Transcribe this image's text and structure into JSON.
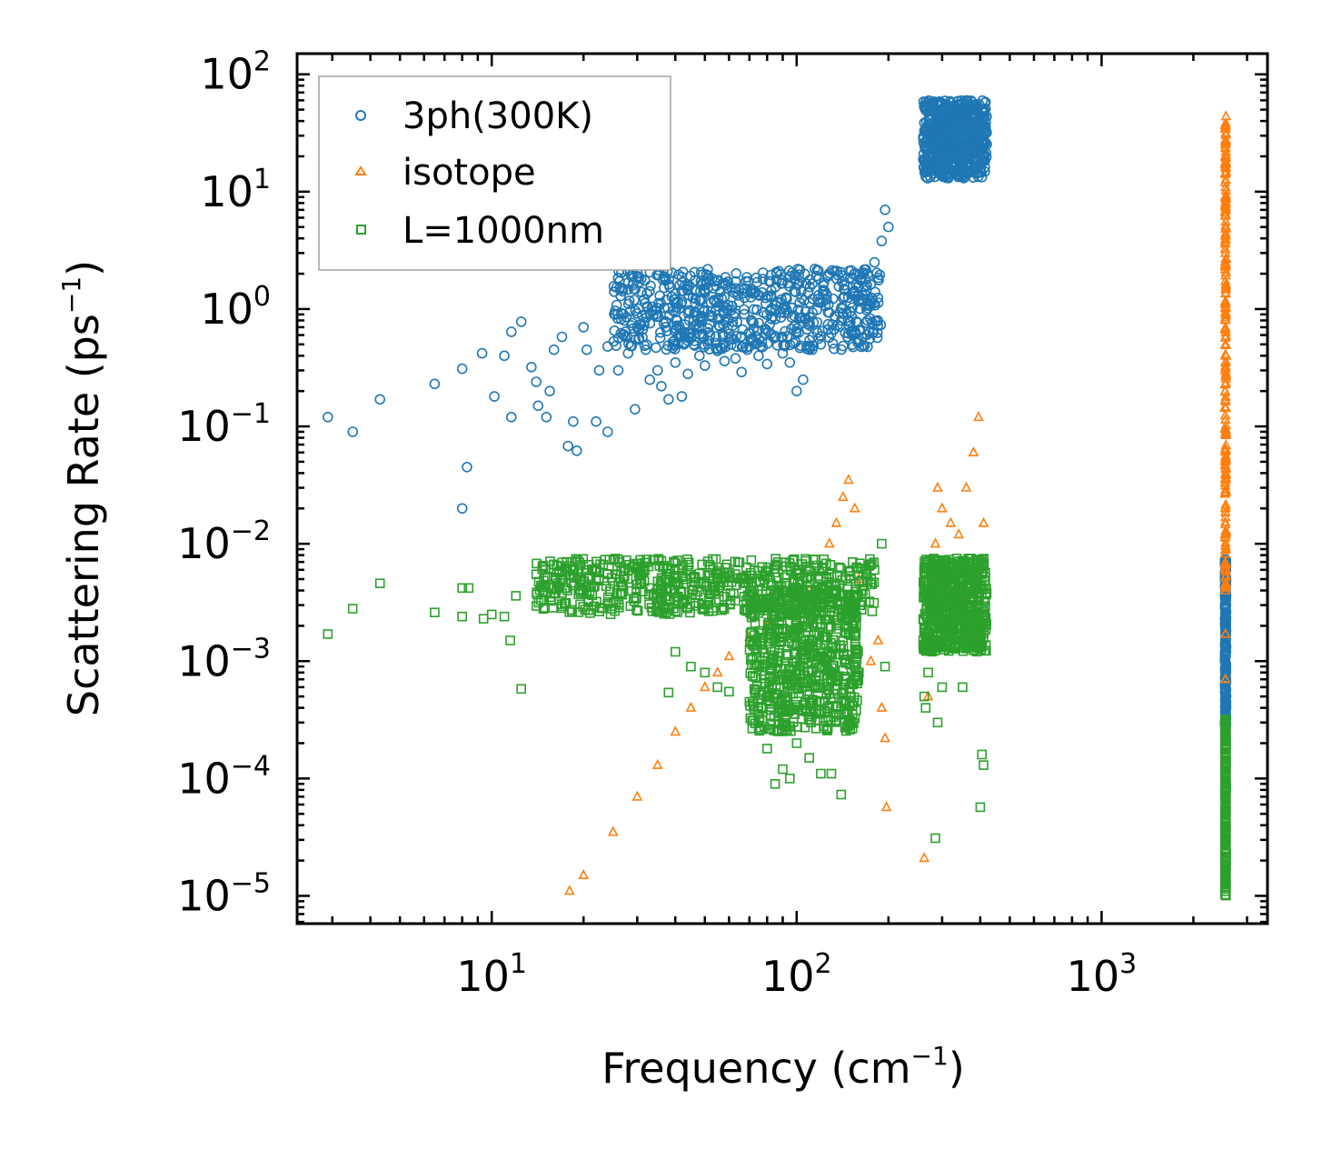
{
  "chart_data": {
    "type": "scatter",
    "title": "",
    "xlabel": "Frequency (cm",
    "xlabel_sup": "−1",
    "xlabel_end": ")",
    "ylabel": "Scattering Rate (ps",
    "ylabel_sup": "−1",
    "ylabel_end": ")",
    "xscale": "log",
    "yscale": "log",
    "xlim": [
      2.3,
      3500
    ],
    "ylim": [
      5.8e-06,
      150
    ],
    "legend_position": "top-left",
    "x_ticks": [
      {
        "value": 10,
        "base": "10",
        "exp": "1"
      },
      {
        "value": 100,
        "base": "10",
        "exp": "2"
      },
      {
        "value": 1000,
        "base": "10",
        "exp": "3"
      }
    ],
    "y_ticks": [
      {
        "value": 1e-05,
        "base": "10",
        "exp": "−5"
      },
      {
        "value": 0.0001,
        "base": "10",
        "exp": "−4"
      },
      {
        "value": 0.001,
        "base": "10",
        "exp": "−3"
      },
      {
        "value": 0.01,
        "base": "10",
        "exp": "−2"
      },
      {
        "value": 0.1,
        "base": "10",
        "exp": "−1"
      },
      {
        "value": 1,
        "base": "10",
        "exp": "0"
      },
      {
        "value": 10,
        "base": "10",
        "exp": "1"
      },
      {
        "value": 100,
        "base": "10",
        "exp": "2"
      }
    ],
    "series": [
      {
        "name": "3ph(300K)",
        "marker": "circle",
        "color": "#1f77b4",
        "points": [
          [
            2.9,
            0.12
          ],
          [
            3.5,
            0.09
          ],
          [
            4.3,
            0.17
          ],
          [
            6.5,
            0.23
          ],
          [
            8.0,
            0.31
          ],
          [
            8.3,
            0.045
          ],
          [
            8.0,
            0.02
          ],
          [
            9.3,
            0.42
          ],
          [
            10.2,
            0.18
          ],
          [
            11.0,
            0.4
          ],
          [
            11.6,
            0.12
          ],
          [
            11.6,
            0.64
          ],
          [
            12.5,
            0.78
          ],
          [
            13.5,
            0.32
          ],
          [
            14.0,
            0.24
          ],
          [
            14.2,
            0.15
          ],
          [
            15.1,
            0.12
          ],
          [
            15.5,
            0.2
          ],
          [
            16.0,
            0.45
          ],
          [
            17.0,
            0.58
          ],
          [
            17.8,
            0.068
          ],
          [
            18.5,
            0.11
          ],
          [
            19.0,
            0.062
          ],
          [
            20.0,
            0.7
          ],
          [
            20.5,
            0.45
          ],
          [
            22.0,
            0.11
          ],
          [
            22.5,
            0.3
          ],
          [
            24.0,
            0.09
          ],
          [
            24.0,
            0.48
          ],
          [
            26.0,
            0.3
          ],
          [
            27.0,
            0.6
          ],
          [
            28.0,
            0.42
          ],
          [
            29.5,
            0.14
          ],
          [
            30.0,
            0.7
          ],
          [
            32.0,
            0.45
          ],
          [
            33.0,
            0.25
          ],
          [
            35.0,
            0.3
          ],
          [
            36.0,
            0.22
          ],
          [
            38.0,
            0.17
          ],
          [
            40.0,
            0.35
          ],
          [
            42.0,
            0.18
          ],
          [
            44.0,
            0.28
          ],
          [
            46.0,
            0.5
          ],
          [
            48.0,
            0.4
          ],
          [
            50.0,
            0.33
          ],
          [
            52.0,
            0.6
          ],
          [
            55.0,
            0.44
          ],
          [
            58.0,
            0.36
          ],
          [
            60.0,
            0.55
          ],
          [
            63.0,
            0.38
          ],
          [
            66.0,
            0.29
          ],
          [
            70.0,
            0.48
          ],
          [
            75.0,
            0.4
          ],
          [
            80.0,
            0.34
          ],
          [
            85.0,
            0.58
          ],
          [
            90.0,
            0.42
          ],
          [
            95.0,
            0.35
          ],
          [
            100.0,
            0.2
          ],
          [
            105.0,
            0.25
          ],
          [
            110.0,
            0.45
          ],
          [
            120.0,
            0.5
          ],
          [
            130.0,
            0.62
          ],
          [
            140.0,
            0.8
          ],
          [
            150.0,
            0.95
          ],
          [
            160.0,
            1.2
          ],
          [
            170.0,
            1.6
          ],
          [
            180.0,
            2.5
          ],
          [
            190.0,
            3.8
          ],
          [
            195.0,
            7.0
          ],
          [
            200.0,
            5.0
          ]
        ],
        "bands": [
          {
            "x0": 25,
            "x1": 190,
            "y_low": 0.45,
            "y_high": 2.2
          },
          {
            "x0": 260,
            "x1": 420,
            "y_low": 13,
            "y_high": 60
          },
          {
            "x0": 2540,
            "x1": 2560,
            "y_low": 0.00028,
            "y_high": 0.0075
          }
        ]
      },
      {
        "name": "isotope",
        "marker": "triangle",
        "color": "#ff7f0e",
        "points": [
          [
            18,
            1.1e-05
          ],
          [
            20,
            1.5e-05
          ],
          [
            25,
            3.5e-05
          ],
          [
            30,
            7e-05
          ],
          [
            35,
            0.00013
          ],
          [
            40,
            0.00025
          ],
          [
            45,
            0.0004
          ],
          [
            50,
            0.0006
          ],
          [
            55,
            0.0008
          ],
          [
            60,
            0.0011
          ],
          [
            70,
            0.0016
          ],
          [
            80,
            0.002
          ],
          [
            95,
            0.0025
          ],
          [
            110,
            0.004
          ],
          [
            120,
            0.006
          ],
          [
            128,
            0.01
          ],
          [
            135,
            0.015
          ],
          [
            142,
            0.025
          ],
          [
            148,
            0.035
          ],
          [
            155,
            0.02
          ],
          [
            160,
            0.005
          ],
          [
            175,
            0.001
          ],
          [
            185,
            0.0015
          ],
          [
            190,
            0.0004
          ],
          [
            195,
            0.00022
          ],
          [
            197,
            5.7e-05
          ],
          [
            262,
            2.1e-05
          ],
          [
            270,
            0.0005
          ],
          [
            275,
            0.006
          ],
          [
            285,
            0.01
          ],
          [
            290,
            0.03
          ],
          [
            300,
            0.02
          ],
          [
            320,
            0.015
          ],
          [
            340,
            0.012
          ],
          [
            360,
            0.03
          ],
          [
            380,
            0.06
          ],
          [
            395,
            0.12
          ],
          [
            410,
            0.015
          ],
          [
            2550,
            0.0007
          ],
          [
            2550,
            0.0017
          ],
          [
            2550,
            0.004
          ],
          [
            2550,
            0.04
          ]
        ],
        "bands": [
          {
            "x0": 2540,
            "x1": 2560,
            "y_low": 0.004,
            "y_high": 45
          }
        ]
      },
      {
        "name": "L=1000nm",
        "marker": "square",
        "color": "#2ca02c",
        "points": [
          [
            2.9,
            0.0017
          ],
          [
            3.5,
            0.0028
          ],
          [
            4.3,
            0.0046
          ],
          [
            6.5,
            0.0026
          ],
          [
            8.0,
            0.0024
          ],
          [
            8.0,
            0.0042
          ],
          [
            8.4,
            0.0042
          ],
          [
            9.4,
            0.0023
          ],
          [
            10.0,
            0.0025
          ],
          [
            11.0,
            0.0024
          ],
          [
            11.5,
            0.0015
          ],
          [
            12.0,
            0.0036
          ],
          [
            12.5,
            0.00058
          ],
          [
            14.0,
            0.0055
          ],
          [
            15.0,
            0.006
          ],
          [
            16.0,
            0.0042
          ],
          [
            17.0,
            0.0038
          ],
          [
            18.0,
            0.0055
          ],
          [
            20.0,
            0.0048
          ],
          [
            22.0,
            0.0062
          ],
          [
            24.0,
            0.0055
          ],
          [
            27.0,
            0.005
          ],
          [
            30.0,
            0.0045
          ],
          [
            33.0,
            0.0042
          ],
          [
            36.0,
            0.0038
          ],
          [
            38.0,
            0.00054
          ],
          [
            40.0,
            0.0012
          ],
          [
            45.0,
            0.0009
          ],
          [
            50.0,
            0.0008
          ],
          [
            55.0,
            0.0006
          ],
          [
            60.0,
            0.00055
          ],
          [
            70.0,
            0.00045
          ],
          [
            80.0,
            0.00018
          ],
          [
            85.0,
            9e-05
          ],
          [
            90.0,
            0.00012
          ],
          [
            95.0,
            0.0001
          ],
          [
            100.0,
            0.0002
          ],
          [
            110.0,
            0.00015
          ],
          [
            120.0,
            0.00011
          ],
          [
            130.0,
            0.00011
          ],
          [
            140.0,
            7.3e-05
          ],
          [
            150.0,
            0.0005
          ],
          [
            160.0,
            0.0008
          ],
          [
            180.0,
            0.006
          ],
          [
            190.0,
            0.01
          ],
          [
            195.0,
            0.0009
          ],
          [
            262,
            0.0005
          ],
          [
            265,
            0.0004
          ],
          [
            270,
            0.0008
          ],
          [
            285,
            3.1e-05
          ],
          [
            290,
            0.0003
          ],
          [
            300,
            0.0006
          ],
          [
            350,
            0.0006
          ],
          [
            400,
            5.7e-05
          ],
          [
            405,
            0.00016
          ],
          [
            410,
            0.00013
          ]
        ],
        "bands": [
          {
            "x0": 14,
            "x1": 180,
            "y_low": 0.0025,
            "y_high": 0.0075
          },
          {
            "x0": 70,
            "x1": 160,
            "y_low": 0.00025,
            "y_high": 0.004
          },
          {
            "x0": 260,
            "x1": 420,
            "y_low": 0.0012,
            "y_high": 0.0075
          },
          {
            "x0": 2540,
            "x1": 2560,
            "y_low": 1e-05,
            "y_high": 0.00032
          }
        ]
      }
    ]
  }
}
